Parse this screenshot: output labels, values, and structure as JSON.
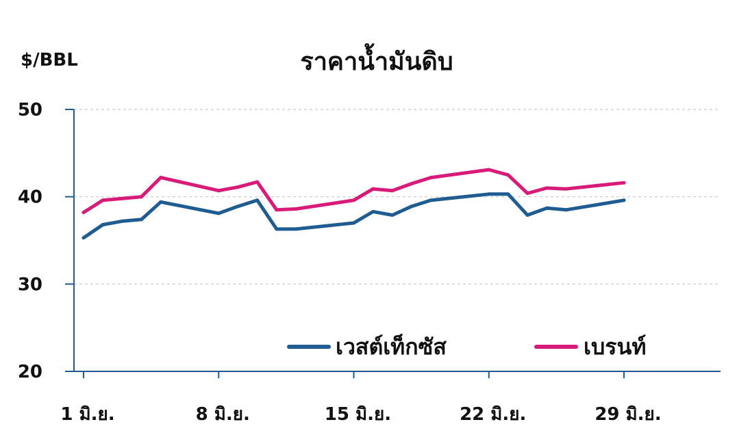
{
  "chart_data": {
    "type": "line",
    "title": "ราคาน้ำมันดิบ",
    "ylabel": "$/BBL",
    "xlabel": "",
    "ylim": [
      20,
      50
    ],
    "yticks": [
      20,
      30,
      40,
      50
    ],
    "xlim": [
      1,
      34
    ],
    "xtick_values": [
      1,
      8,
      15,
      22,
      29
    ],
    "xtick_labels": [
      "1 มิ.ย.",
      "8 มิ.ย.",
      "15 มิ.ย.",
      "22 มิ.ย.",
      "29 มิ.ย."
    ],
    "grid": "horizontal-dashed",
    "legend": "bottom-right",
    "series": [
      {
        "name": "เวสต์เท็กซัส",
        "color": "#1f5c91",
        "x": [
          1,
          2,
          3,
          4,
          5,
          8,
          9,
          10,
          11,
          12,
          15,
          16,
          17,
          18,
          19,
          22,
          23,
          24,
          25,
          26,
          29
        ],
        "y": [
          35.3,
          36.8,
          37.2,
          37.4,
          39.4,
          38.1,
          38.9,
          39.6,
          36.3,
          36.3,
          37.0,
          38.3,
          37.9,
          38.9,
          39.6,
          40.3,
          40.3,
          37.9,
          38.7,
          38.5,
          39.6
        ]
      },
      {
        "name": "เบรนท์",
        "color": "#d81b78",
        "x": [
          1,
          2,
          3,
          4,
          5,
          8,
          9,
          10,
          11,
          12,
          15,
          16,
          17,
          18,
          19,
          22,
          23,
          24,
          25,
          26,
          29
        ],
        "y": [
          38.2,
          39.6,
          39.8,
          40.0,
          42.2,
          40.7,
          41.1,
          41.7,
          38.5,
          38.6,
          39.6,
          40.9,
          40.7,
          41.5,
          42.2,
          43.1,
          42.5,
          40.4,
          41.0,
          40.9,
          41.6
        ]
      }
    ]
  }
}
